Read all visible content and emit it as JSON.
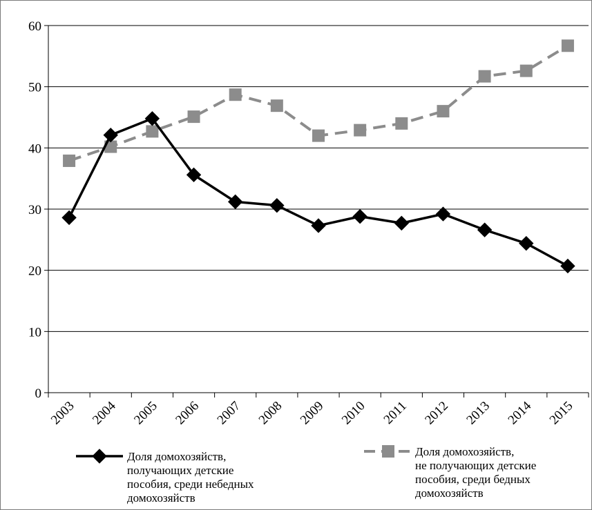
{
  "chart_data": {
    "type": "line",
    "categories": [
      "2003",
      "2004",
      "2005",
      "2006",
      "2007",
      "2008",
      "2009",
      "2010",
      "2011",
      "2012",
      "2013",
      "2014",
      "2015"
    ],
    "series": [
      {
        "name": [
          "Доля домохозяйств,",
          "получающих детские",
          "пособия, среди небедных",
          "домохозяйств"
        ],
        "marker": "diamond",
        "line": "solid",
        "color": "#000000",
        "values": [
          28.6,
          42.1,
          44.8,
          35.6,
          31.2,
          30.6,
          27.3,
          28.8,
          27.7,
          29.2,
          26.6,
          24.4,
          20.7
        ]
      },
      {
        "name": [
          "Доля домохозяйств,",
          "не получающих детские",
          "пособия, среди бедных",
          "домохозяйств"
        ],
        "marker": "square",
        "line": "dashed",
        "color": "#8c8c8c",
        "values": [
          37.9,
          40.2,
          42.7,
          45.1,
          48.7,
          46.9,
          42.0,
          42.9,
          44.0,
          46.0,
          51.7,
          52.6,
          56.7
        ]
      }
    ],
    "yticks": [
      "0",
      "10",
      "20",
      "30",
      "40",
      "50",
      "60"
    ],
    "ylim": [
      0,
      60
    ],
    "grid": true,
    "legend_position": "bottom"
  }
}
